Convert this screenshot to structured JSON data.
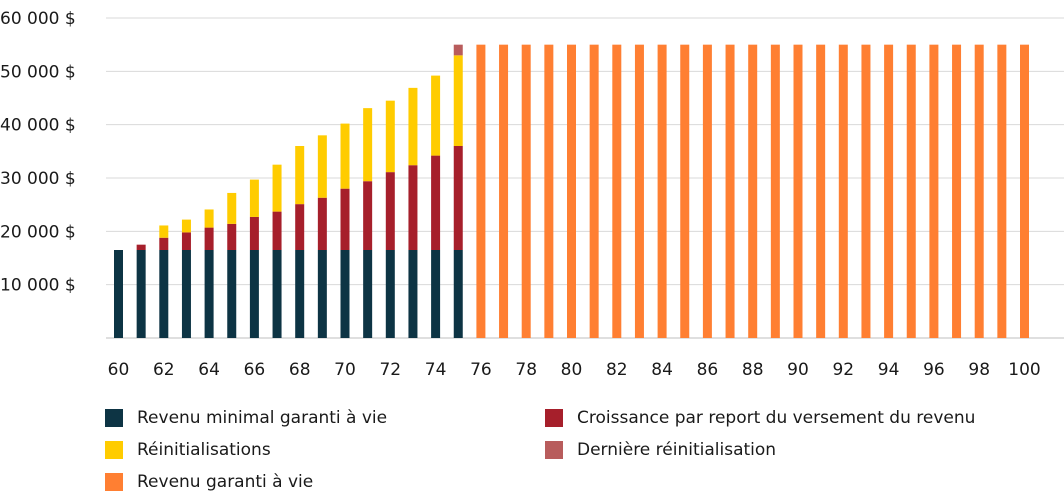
{
  "chart_data": {
    "type": "bar",
    "stacked": true,
    "title": "",
    "xlabel": "",
    "ylabel": "",
    "ylim": [
      0,
      60000
    ],
    "yticks": [
      {
        "value": 10000,
        "label": "10 000 $"
      },
      {
        "value": 20000,
        "label": "20 000 $"
      },
      {
        "value": 30000,
        "label": "30 000 $"
      },
      {
        "value": 40000,
        "label": "40 000 $"
      },
      {
        "value": 50000,
        "label": "50 000 $"
      },
      {
        "value": 60000,
        "label": "60 000 $"
      }
    ],
    "categories": [
      60,
      61,
      62,
      63,
      64,
      65,
      66,
      67,
      68,
      69,
      70,
      71,
      72,
      73,
      74,
      75,
      76,
      77,
      78,
      79,
      80,
      81,
      82,
      83,
      84,
      85,
      86,
      87,
      88,
      89,
      90,
      91,
      92,
      93,
      94,
      95,
      96,
      97,
      98,
      99,
      100
    ],
    "xtick_labels": [
      "60",
      "62",
      "64",
      "66",
      "68",
      "70",
      "72",
      "74",
      "76",
      "78",
      "80",
      "82",
      "84",
      "86",
      "88",
      "90",
      "92",
      "94",
      "96",
      "98",
      "100"
    ],
    "grid": true,
    "legend_position": "bottom",
    "series": [
      {
        "name": "Revenu minimal garanti à vie",
        "color": "#0d3444",
        "values": [
          16500,
          16500,
          16500,
          16500,
          16500,
          16500,
          16500,
          16500,
          16500,
          16500,
          16500,
          16500,
          16500,
          16500,
          16500,
          16500,
          0,
          0,
          0,
          0,
          0,
          0,
          0,
          0,
          0,
          0,
          0,
          0,
          0,
          0,
          0,
          0,
          0,
          0,
          0,
          0,
          0,
          0,
          0,
          0,
          0
        ]
      },
      {
        "name": "Croissance par report du versement du revenu",
        "color": "#a61f2b",
        "values": [
          0,
          1000,
          2300,
          3300,
          4200,
          4900,
          6200,
          7200,
          8600,
          9800,
          11500,
          12900,
          14600,
          15900,
          17700,
          19500,
          0,
          0,
          0,
          0,
          0,
          0,
          0,
          0,
          0,
          0,
          0,
          0,
          0,
          0,
          0,
          0,
          0,
          0,
          0,
          0,
          0,
          0,
          0,
          0,
          0
        ]
      },
      {
        "name": "Réinitialisations",
        "color": "#ffcc00",
        "values": [
          0,
          0,
          2300,
          2400,
          3400,
          5800,
          7000,
          8800,
          10900,
          11700,
          12200,
          13700,
          13400,
          14500,
          15000,
          17000,
          0,
          0,
          0,
          0,
          0,
          0,
          0,
          0,
          0,
          0,
          0,
          0,
          0,
          0,
          0,
          0,
          0,
          0,
          0,
          0,
          0,
          0,
          0,
          0,
          0
        ]
      },
      {
        "name": "Dernière réinitialisation",
        "color": "#b85c5c",
        "values": [
          0,
          0,
          0,
          0,
          0,
          0,
          0,
          0,
          0,
          0,
          0,
          0,
          0,
          0,
          0,
          2000,
          0,
          0,
          0,
          0,
          0,
          0,
          0,
          0,
          0,
          0,
          0,
          0,
          0,
          0,
          0,
          0,
          0,
          0,
          0,
          0,
          0,
          0,
          0,
          0,
          0
        ]
      },
      {
        "name": "Revenu garanti à vie",
        "color": "#ff7f32",
        "values": [
          0,
          0,
          0,
          0,
          0,
          0,
          0,
          0,
          0,
          0,
          0,
          0,
          0,
          0,
          0,
          0,
          55000,
          55000,
          55000,
          55000,
          55000,
          55000,
          55000,
          55000,
          55000,
          55000,
          55000,
          55000,
          55000,
          55000,
          55000,
          55000,
          55000,
          55000,
          55000,
          55000,
          55000,
          55000,
          55000,
          55000,
          55000
        ]
      }
    ]
  },
  "legend": {
    "items": [
      {
        "label": "Revenu minimal garanti à vie",
        "color": "#0d3444"
      },
      {
        "label": "Croissance par report du versement du revenu",
        "color": "#a61f2b"
      },
      {
        "label": "Réinitialisations",
        "color": "#ffcc00"
      },
      {
        "label": "Dernière réinitialisation",
        "color": "#b85c5c"
      },
      {
        "label": "Revenu garanti à vie",
        "color": "#ff7f32"
      }
    ]
  }
}
